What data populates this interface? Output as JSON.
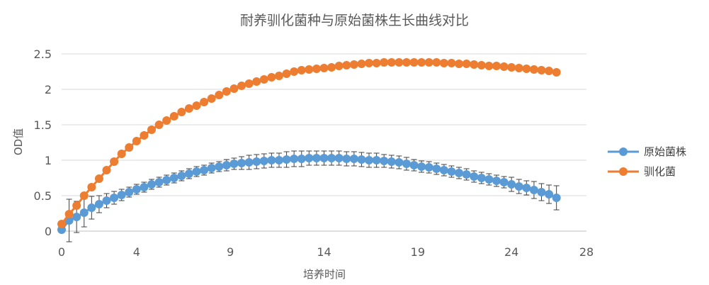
{
  "chart_data": {
    "type": "line",
    "title": "耐养驯化菌种与原始菌株生长曲线对比",
    "xlabel": "培养时间",
    "ylabel": "OD值",
    "xlim": [
      0,
      28
    ],
    "ylim": [
      0,
      2.5
    ],
    "x_ticks": [
      "0",
      "4",
      "9",
      "14",
      "19",
      "24",
      "28"
    ],
    "y_ticks": [
      "0",
      "0.5",
      "1",
      "1.5",
      "2",
      "2.5"
    ],
    "grid": "horizontal",
    "legend_position": "right",
    "series": [
      {
        "name": "原始菌株",
        "color": "#5B9BD5",
        "x": [
          0,
          0.4,
          0.8,
          1.2,
          1.6,
          2,
          2.4,
          2.8,
          3.2,
          3.6,
          4,
          4.4,
          4.8,
          5.2,
          5.6,
          6,
          6.4,
          6.8,
          7.2,
          7.6,
          8,
          8.4,
          8.8,
          9.2,
          9.6,
          10,
          10.4,
          10.8,
          11.2,
          11.6,
          12,
          12.4,
          12.8,
          13.2,
          13.6,
          14,
          14.4,
          14.8,
          15.2,
          15.6,
          16,
          16.4,
          16.8,
          17.2,
          17.6,
          18,
          18.4,
          18.8,
          19.2,
          19.6,
          20,
          20.4,
          20.8,
          21.2,
          21.6,
          22,
          22.4,
          22.8,
          23.2,
          23.6,
          24,
          24.4,
          24.8,
          25.2,
          25.6,
          26,
          26.4
        ],
        "y": [
          0.02,
          0.15,
          0.2,
          0.26,
          0.33,
          0.38,
          0.43,
          0.47,
          0.51,
          0.55,
          0.59,
          0.62,
          0.66,
          0.69,
          0.72,
          0.75,
          0.78,
          0.81,
          0.84,
          0.86,
          0.89,
          0.91,
          0.93,
          0.95,
          0.96,
          0.97,
          0.98,
          0.99,
          1.0,
          1.0,
          1.01,
          1.02,
          1.02,
          1.03,
          1.03,
          1.03,
          1.03,
          1.03,
          1.02,
          1.02,
          1.01,
          1.0,
          1.0,
          0.99,
          0.98,
          0.97,
          0.95,
          0.93,
          0.91,
          0.9,
          0.88,
          0.86,
          0.84,
          0.82,
          0.8,
          0.77,
          0.75,
          0.73,
          0.71,
          0.69,
          0.66,
          0.63,
          0.61,
          0.58,
          0.55,
          0.52,
          0.47
        ],
        "error": [
          0.03,
          0.3,
          0.22,
          0.2,
          0.16,
          0.12,
          0.1,
          0.09,
          0.08,
          0.07,
          0.07,
          0.07,
          0.07,
          0.07,
          0.07,
          0.07,
          0.07,
          0.07,
          0.07,
          0.07,
          0.07,
          0.07,
          0.08,
          0.08,
          0.09,
          0.1,
          0.1,
          0.1,
          0.1,
          0.1,
          0.11,
          0.11,
          0.11,
          0.1,
          0.1,
          0.1,
          0.1,
          0.1,
          0.1,
          0.1,
          0.1,
          0.1,
          0.1,
          0.09,
          0.09,
          0.09,
          0.09,
          0.08,
          0.08,
          0.08,
          0.08,
          0.08,
          0.08,
          0.08,
          0.08,
          0.08,
          0.08,
          0.08,
          0.08,
          0.08,
          0.1,
          0.1,
          0.1,
          0.12,
          0.12,
          0.13,
          0.17
        ]
      },
      {
        "name": "驯化菌",
        "color": "#ED7D31",
        "x": [
          0,
          0.4,
          0.8,
          1.2,
          1.6,
          2,
          2.4,
          2.8,
          3.2,
          3.6,
          4,
          4.4,
          4.8,
          5.2,
          5.6,
          6,
          6.4,
          6.8,
          7.2,
          7.6,
          8,
          8.4,
          8.8,
          9.2,
          9.6,
          10,
          10.4,
          10.8,
          11.2,
          11.6,
          12,
          12.4,
          12.8,
          13.2,
          13.6,
          14,
          14.4,
          14.8,
          15.2,
          15.6,
          16,
          16.4,
          16.8,
          17.2,
          17.6,
          18,
          18.4,
          18.8,
          19.2,
          19.6,
          20,
          20.4,
          20.8,
          21.2,
          21.6,
          22,
          22.4,
          22.8,
          23.2,
          23.6,
          24,
          24.4,
          24.8,
          25.2,
          25.6,
          26,
          26.4
        ],
        "y": [
          0.1,
          0.24,
          0.36,
          0.5,
          0.62,
          0.74,
          0.86,
          0.98,
          1.09,
          1.18,
          1.27,
          1.35,
          1.43,
          1.5,
          1.56,
          1.62,
          1.68,
          1.73,
          1.77,
          1.82,
          1.87,
          1.92,
          1.97,
          2.01,
          2.05,
          2.08,
          2.11,
          2.14,
          2.17,
          2.19,
          2.22,
          2.25,
          2.27,
          2.28,
          2.29,
          2.3,
          2.31,
          2.33,
          2.34,
          2.35,
          2.36,
          2.37,
          2.37,
          2.38,
          2.38,
          2.38,
          2.38,
          2.38,
          2.38,
          2.38,
          2.38,
          2.37,
          2.37,
          2.36,
          2.36,
          2.35,
          2.34,
          2.33,
          2.33,
          2.32,
          2.31,
          2.3,
          2.29,
          2.28,
          2.27,
          2.26,
          2.24
        ]
      }
    ]
  }
}
